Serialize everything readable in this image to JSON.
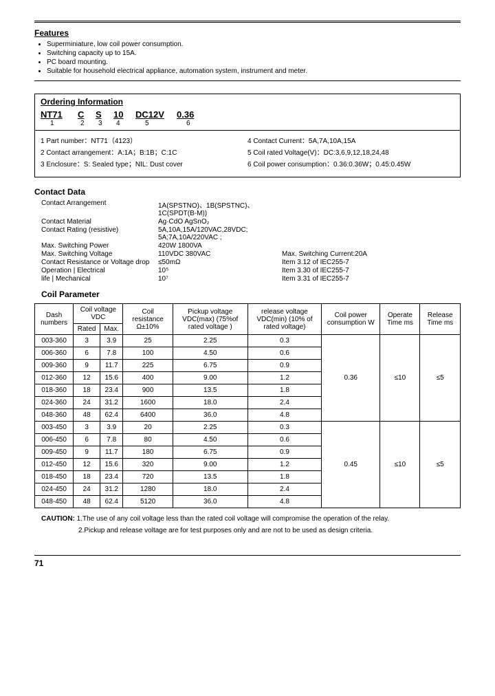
{
  "features": {
    "title": "Features",
    "items": [
      "Superminiature, low coil power consumption.",
      "Switching capacity up to 15A.",
      "PC board mounting.",
      "Suitable for household electrical appliance, automation system, instrument and meter."
    ]
  },
  "ordering": {
    "title": "Ordering Information",
    "parts": [
      "NT71",
      "C",
      "S",
      "10",
      "DC12V",
      "0.36"
    ],
    "nums": [
      "1",
      "2",
      "3",
      "4",
      "5",
      "6"
    ],
    "leftLegend": [
      "1 Part number：NT71（4123）",
      "2 Contact arrangement：A:1A；B:1B；C:1C",
      "3 Enclosure：S: Sealed type；NIL: Dust cover"
    ],
    "rightLegend": [
      "4 Contact Current：5A,7A,10A,15A",
      "5 Coil rated Voltage(V)：DC:3,6,9,12,18,24,48",
      "6 Coil power consumption：0.36:0.36W；0.45:0.45W"
    ]
  },
  "contactData": {
    "title": "Contact Data",
    "rows": [
      {
        "label": "Contact Arrangement",
        "v1": "1A(SPSTNO)、1B(SPSTNC)、1C(SPDT(B-M))",
        "v2": ""
      },
      {
        "label": "Contact Material",
        "v1": "Ag·CdO    AgSnO₂",
        "v2": ""
      },
      {
        "label": "Contact Rating (resistive)",
        "v1": "5A,10A,15A/120VAC,28VDC; 5A;7A,10A/220VAC ;",
        "v2": ""
      },
      {
        "label": "Max. Switching Power",
        "v1": "420W   1800VA",
        "v2": ""
      },
      {
        "label": "Max. Switching Voltage",
        "v1": "110VDC 380VAC",
        "v2": "Max. Switching Current:20A"
      },
      {
        "label": "Contact Resistance or Voltage drop",
        "v1": "≤50mΩ",
        "v2": "Item 3.12 of IEC255-7"
      },
      {
        "label": "Operation  | Electrical",
        "v1": "10⁵",
        "v2": "Item 3.30 of IEC255-7"
      },
      {
        "label": "life           | Mechanical",
        "v1": "10⁷",
        "v2": "Item 3.31 of IEC255-7"
      }
    ]
  },
  "coil": {
    "title": "Coil Parameter",
    "headers": {
      "dash": "Dash numbers",
      "cv": "Coil voltage VDC",
      "rated": "Rated",
      "max": "Max.",
      "res": "Coil resistance Ω±10%",
      "pickup": "Pickup voltage VDC(max) (75%of rated voltage )",
      "release": "release voltage VDC(min) (10% of rated voltage)",
      "power": "Coil power consumption W",
      "optime": "Operate Time ms",
      "reltime": "Release Time ms"
    },
    "groups": [
      {
        "power": "0.36",
        "optime": "≤10",
        "reltime": "≤5",
        "rows": [
          {
            "dash": "003-360",
            "rated": "3",
            "max": "3.9",
            "res": "25",
            "pickup": "2.25",
            "rel": "0.3"
          },
          {
            "dash": "006-360",
            "rated": "6",
            "max": "7.8",
            "res": "100",
            "pickup": "4.50",
            "rel": "0.6"
          },
          {
            "dash": "009-360",
            "rated": "9",
            "max": "11.7",
            "res": "225",
            "pickup": "6.75",
            "rel": "0.9"
          },
          {
            "dash": "012-360",
            "rated": "12",
            "max": "15.6",
            "res": "400",
            "pickup": "9.00",
            "rel": "1.2"
          },
          {
            "dash": "018-360",
            "rated": "18",
            "max": "23.4",
            "res": "900",
            "pickup": "13.5",
            "rel": "1.8"
          },
          {
            "dash": "024-360",
            "rated": "24",
            "max": "31.2",
            "res": "1600",
            "pickup": "18.0",
            "rel": "2.4"
          },
          {
            "dash": "048-360",
            "rated": "48",
            "max": "62.4",
            "res": "6400",
            "pickup": "36.0",
            "rel": "4.8"
          }
        ]
      },
      {
        "power": "0.45",
        "optime": "≤10",
        "reltime": "≤5",
        "rows": [
          {
            "dash": "003-450",
            "rated": "3",
            "max": "3.9",
            "res": "20",
            "pickup": "2.25",
            "rel": "0.3"
          },
          {
            "dash": "006-450",
            "rated": "6",
            "max": "7.8",
            "res": "80",
            "pickup": "4.50",
            "rel": "0.6"
          },
          {
            "dash": "009-450",
            "rated": "9",
            "max": "11.7",
            "res": "180",
            "pickup": "6.75",
            "rel": "0.9"
          },
          {
            "dash": "012-450",
            "rated": "12",
            "max": "15.6",
            "res": "320",
            "pickup": "9.00",
            "rel": "1.2"
          },
          {
            "dash": "018-450",
            "rated": "18",
            "max": "23.4",
            "res": "720",
            "pickup": "13.5",
            "rel": "1.8"
          },
          {
            "dash": "024-450",
            "rated": "24",
            "max": "31.2",
            "res": "1280",
            "pickup": "18.0",
            "rel": "2.4"
          },
          {
            "dash": "048-450",
            "rated": "48",
            "max": "62.4",
            "res": "5120",
            "pickup": "36.0",
            "rel": "4.8"
          }
        ]
      }
    ]
  },
  "caution": {
    "label": "CAUTION:",
    "line1": "1.The use of any coil voltage less than the rated coil voltage will compromise the operation of the relay.",
    "line2": "2.Pickup and release voltage are for test purposes only and are not to be used as design criteria."
  },
  "pageNum": "71"
}
